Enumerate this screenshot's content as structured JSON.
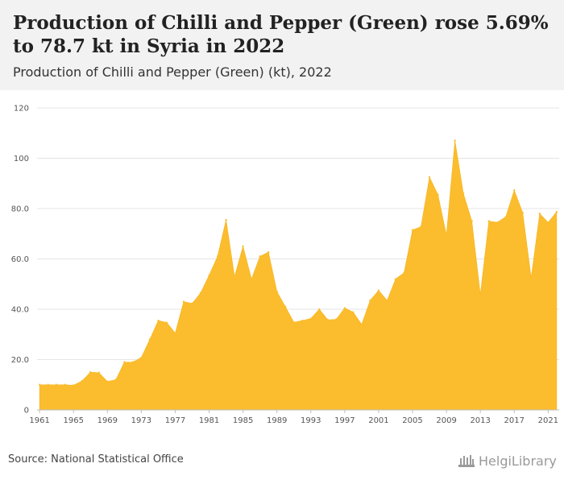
{
  "header": {
    "title": "Production of Chilli and Pepper (Green) rose 5.69% to 78.7 kt in Syria in 2022",
    "subtitle": "Production of Chilli and Pepper (Green) (kt), 2022"
  },
  "footer": {
    "source": "Source: National Statistical Office",
    "logo": "HelgiLibrary"
  },
  "colors": {
    "area": "#fbbd2d",
    "grid": "#e4e4e4",
    "header_bg": "#f2f2f2"
  },
  "chart_data": {
    "type": "area",
    "x": [
      1961,
      1962,
      1963,
      1964,
      1965,
      1966,
      1967,
      1968,
      1969,
      1970,
      1971,
      1972,
      1973,
      1974,
      1975,
      1976,
      1977,
      1978,
      1979,
      1980,
      1981,
      1982,
      1983,
      1984,
      1985,
      1986,
      1987,
      1988,
      1989,
      1990,
      1991,
      1992,
      1993,
      1994,
      1995,
      1996,
      1997,
      1998,
      1999,
      2000,
      2001,
      2002,
      2003,
      2004,
      2005,
      2006,
      2007,
      2008,
      2009,
      2010,
      2011,
      2012,
      2013,
      2014,
      2015,
      2016,
      2017,
      2018,
      2019,
      2020,
      2021,
      2022
    ],
    "series": [
      {
        "values": [
          10,
          10,
          10,
          10,
          9.8,
          11.5,
          15,
          14.8,
          11.3,
          12,
          19,
          19,
          20.8,
          28,
          35.5,
          34.7,
          30.5,
          43,
          42.3,
          46.5,
          53.5,
          61,
          75.5,
          53,
          65,
          52,
          61,
          62.7,
          47,
          41,
          34.8,
          35.5,
          36.3,
          40,
          35.8,
          36,
          40.5,
          38.8,
          34,
          43.5,
          47.5,
          43.5,
          52,
          54.5,
          71.5,
          72.8,
          92.5,
          85.5,
          69.5,
          107,
          86,
          75,
          45.8,
          75,
          74.5,
          76.7,
          87.3,
          78.3,
          52.5,
          78,
          74.5,
          78.7
        ]
      }
    ],
    "y_ticks": [
      "0",
      "20.0",
      "40.0",
      "60.0",
      "80.0",
      "100",
      "120"
    ],
    "x_ticks": [
      "1961",
      "1965",
      "1969",
      "1973",
      "1977",
      "1981",
      "1985",
      "1989",
      "1993",
      "1997",
      "2001",
      "2005",
      "2009",
      "2013",
      "2017",
      "2021"
    ],
    "ylim": [
      0,
      120
    ],
    "grid": true
  }
}
